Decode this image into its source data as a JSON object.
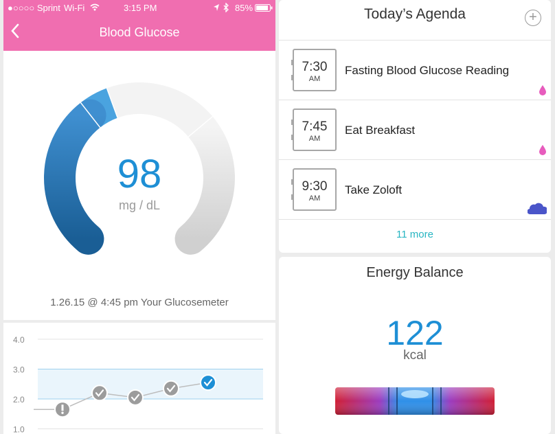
{
  "status_bar": {
    "carrier": "●○○○○ Sprint",
    "network": "Wi-Fi",
    "time": "3:15 PM",
    "battery": "85%",
    "icons": [
      "wifi-icon",
      "location-icon",
      "bluetooth-icon",
      "battery-icon"
    ]
  },
  "nav": {
    "back_icon": "chevron-left-icon",
    "title": "Blood Glucose"
  },
  "reading": {
    "value": "98",
    "unit": "mg / dL",
    "meta": "1.26.15 @ 4:45 pm Your Glucosemeter"
  },
  "trend": {
    "y_labels": [
      "4.0",
      "3.0",
      "2.0",
      "1.0"
    ],
    "target_band": [
      2.0,
      3.0
    ],
    "points": [
      {
        "x": 0,
        "y": 1.65,
        "status": "warning-icon"
      },
      {
        "x": 1,
        "y": 2.2,
        "status": "check-icon"
      },
      {
        "x": 2,
        "y": 2.05,
        "status": "check-icon"
      },
      {
        "x": 3,
        "y": 2.35,
        "status": "check-icon"
      },
      {
        "x": 4,
        "y": 2.55,
        "status": "check-icon-active"
      }
    ]
  },
  "agenda": {
    "title": "Today’s Agenda",
    "add_icon": "plus-circle-icon",
    "items": [
      {
        "time": "7:30",
        "ampm": "AM",
        "label": "Fasting Blood Glucose Reading",
        "icon": "drop-icon"
      },
      {
        "time": "7:45",
        "ampm": "AM",
        "label": "Eat Breakfast",
        "icon": "drop-icon"
      },
      {
        "time": "9:30",
        "ampm": "AM",
        "label": "Take Zoloft",
        "icon": "pill-cloud-icon"
      }
    ],
    "more": "11 more"
  },
  "energy": {
    "title": "Energy Balance",
    "value": "122",
    "unit": "kcal"
  },
  "colors": {
    "header_pink": "#f06eb0",
    "accent_blue": "#1e8fd5",
    "teal": "#28b5c2",
    "drop_pink": "#e75cbd",
    "pill_blue": "#4a55c9"
  }
}
